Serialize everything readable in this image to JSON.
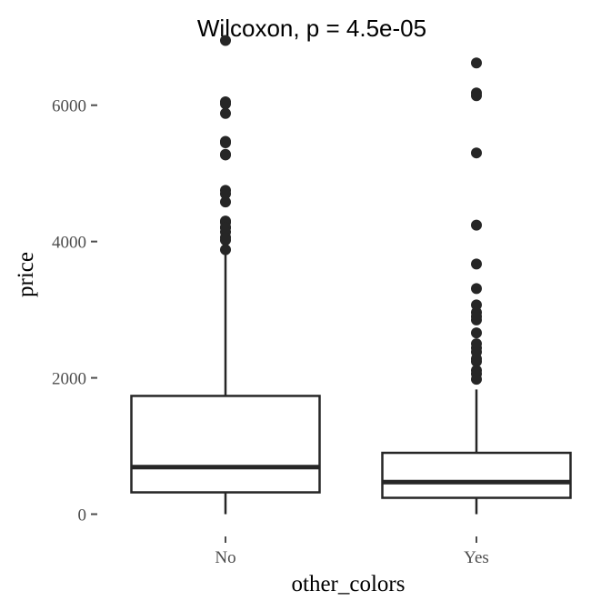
{
  "chart_data": {
    "type": "boxplot",
    "title": "Wilcoxon, p = 4.5e-05",
    "xlabel": "other_colors",
    "ylabel": "price",
    "categories": [
      "No",
      "Yes"
    ],
    "y_ticks": [
      0,
      2000,
      4000,
      6000
    ],
    "y_tick_labels": [
      "0",
      "2000",
      "4000",
      "6000"
    ],
    "ylim": [
      -300,
      7050
    ],
    "grid": false,
    "boxes": [
      {
        "category": "No",
        "whisker_low": 0,
        "q1": 320,
        "median": 690,
        "q3": 1735,
        "whisker_high": 3850,
        "outliers": [
          6950,
          6050,
          6020,
          5880,
          5470,
          5450,
          5280,
          5270,
          4750,
          4700,
          4580,
          4300,
          4280,
          4210,
          4200,
          4140,
          4060,
          4020,
          3880
        ]
      },
      {
        "category": "Yes",
        "whisker_low": 0,
        "q1": 240,
        "median": 470,
        "q3": 900,
        "whisker_high": 1830,
        "outliers": [
          6620,
          6180,
          6140,
          5300,
          4240,
          3670,
          3310,
          3070,
          2960,
          2900,
          2850,
          2660,
          2500,
          2440,
          2380,
          2280,
          2240,
          2110,
          2060,
          1980
        ]
      }
    ],
    "colors": {
      "box_line": "#262626",
      "box_fill": "#ffffff",
      "points": "#262626",
      "ticks": "#4d4d4d"
    }
  }
}
